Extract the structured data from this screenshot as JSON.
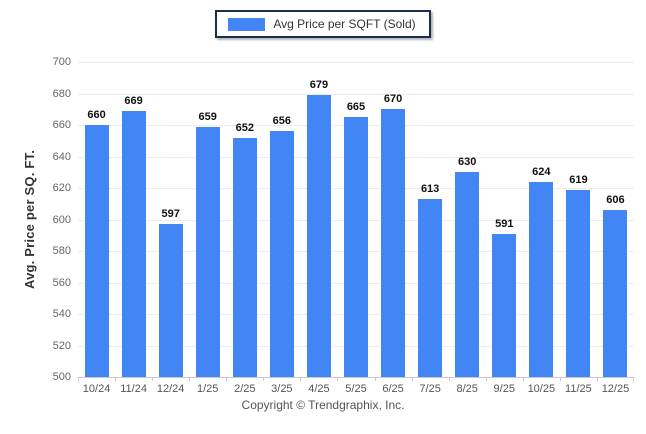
{
  "legend": {
    "label": "Avg Price per SQFT (Sold)"
  },
  "footer": {
    "text": "Copyright © Trendgraphix, Inc."
  },
  "colors": {
    "bar": "#4285f4",
    "grid": "#ededed",
    "axis": "#c9c9c9",
    "y_tick_label": "#666666",
    "x_tick_label": "#555555",
    "value_label": "#111111",
    "legend_border": "#1c2e4a"
  },
  "chart_data": {
    "type": "bar",
    "title": "Avg Price per SQFT (Sold)",
    "xlabel": "",
    "ylabel": "Avg. Price per SQ. FT.",
    "categories": [
      "10/24",
      "11/24",
      "12/24",
      "1/25",
      "2/25",
      "3/25",
      "4/25",
      "5/25",
      "6/25",
      "7/25",
      "8/25",
      "9/25",
      "10/25",
      "11/25",
      "12/25"
    ],
    "values": [
      660,
      669,
      597,
      659,
      652,
      656,
      679,
      665,
      670,
      613,
      630,
      591,
      624,
      619,
      606
    ],
    "ylim": [
      500,
      700
    ],
    "ytick_step": 20,
    "grid": true,
    "legend_position": "top-center",
    "value_labels": true
  }
}
